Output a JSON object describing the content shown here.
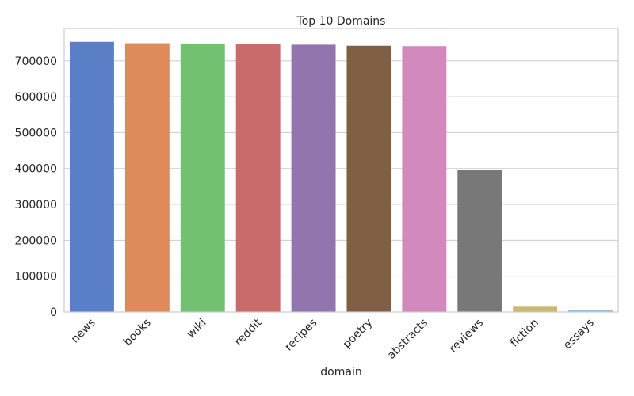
{
  "chart_data": {
    "type": "bar",
    "title": "Top 10 Domains",
    "xlabel": "domain",
    "ylabel": "",
    "categories": [
      "news",
      "books",
      "wiki",
      "reddit",
      "recipes",
      "poetry",
      "abstracts",
      "reviews",
      "fiction",
      "essays"
    ],
    "values": [
      753000,
      749000,
      747000,
      746000,
      745000,
      742000,
      741000,
      395000,
      17000,
      5000
    ],
    "colors": [
      "#5a7fc6",
      "#de8a5a",
      "#72c171",
      "#c96b6b",
      "#9275ae",
      "#805f44",
      "#d189be",
      "#787878",
      "#ccb86f",
      "#8ec2d4"
    ],
    "ylim": [
      0,
      790000
    ],
    "yticks": [
      0,
      100000,
      200000,
      300000,
      400000,
      500000,
      600000,
      700000
    ],
    "grid": true,
    "legend": "none"
  }
}
